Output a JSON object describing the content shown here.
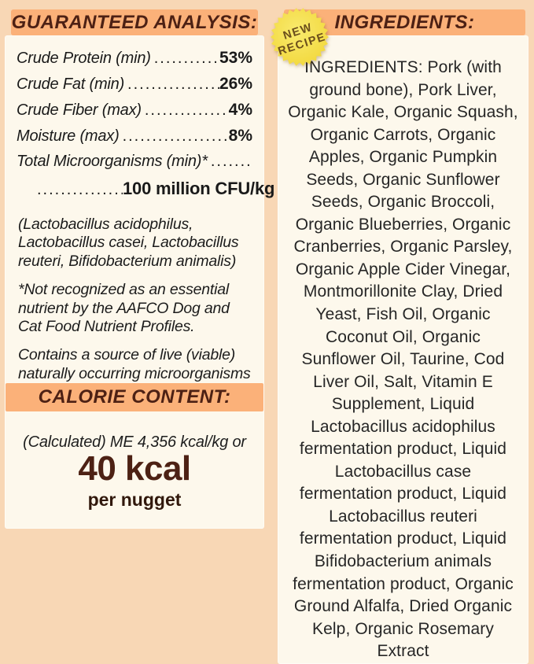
{
  "colors": {
    "background_peach": "#f8d7b5",
    "band_orange": "#fbb179",
    "panel_cream": "#fdf8ec",
    "header_brown": "#4d2114",
    "badge_yellow": "#f5df4a",
    "badge_text_brown": "#6b4e1c",
    "body_text": "#1c1c1c"
  },
  "guaranteed_analysis": {
    "title": "GUARANTEED ANALYSIS:",
    "rows": [
      {
        "label": "Crude Protein (min)",
        "dots": "......................",
        "value": "53%"
      },
      {
        "label": "Crude Fat (min)",
        "dots": "........................",
        "value": "26%"
      },
      {
        "label": "Crude Fiber (max)",
        "dots": ".......................",
        "value": "4%"
      },
      {
        "label": "Moisture (max)",
        "dots": ".........................",
        "value": "8%"
      }
    ],
    "micro_row": {
      "label": "Total Microorganisms (min)*",
      "dots": "................"
    },
    "cfu_row": {
      "dots": "................",
      "value": "100 million CFU/kg"
    },
    "notes": [
      "(Lactobacillus acidophilus, Lactobacillus casei, Lactobacillus reuteri, Bifidobacterium animalis)",
      "*Not recognized as an essential nutrient by the AAFCO Dog and Cat Food Nutrient Profiles.",
      "Contains a source of live (viable) naturally occurring microorganisms"
    ]
  },
  "calorie_content": {
    "title": "CALORIE CONTENT:",
    "calculated_line": "(Calculated) ME 4,356 kcal/kg or",
    "kcal_value": "40 kcal",
    "per_unit": "per nugget"
  },
  "ingredients": {
    "title": "INGREDIENTS:",
    "badge": {
      "line1": "NEW",
      "line2": "RECIPE"
    },
    "text": "INGREDIENTS: Pork (with ground bone), Pork Liver, Organic Kale, Organic Squash, Organic Carrots, Organic Apples, Organic Pumpkin Seeds, Organic Sunflower Seeds, Organic Broccoli, Organic Blueberries, Organic Cranberries, Organic Parsley, Organic Apple Cider Vinegar, Montmorillonite Clay, Dried Yeast, Fish Oil, Organic Coconut Oil, Organic Sunflower Oil, Taurine, Cod Liver Oil, Salt, Vitamin E Supplement, Liquid Lactobacillus acidophilus fermentation product, Liquid Lactobacillus case fermentation product, Liquid Lactobacillus reuteri fermentation product, Liquid Bifidobacterium animals fermentation product, Organic Ground Alfalfa, Dried Organic Kelp, Organic Rosemary Extract"
  }
}
